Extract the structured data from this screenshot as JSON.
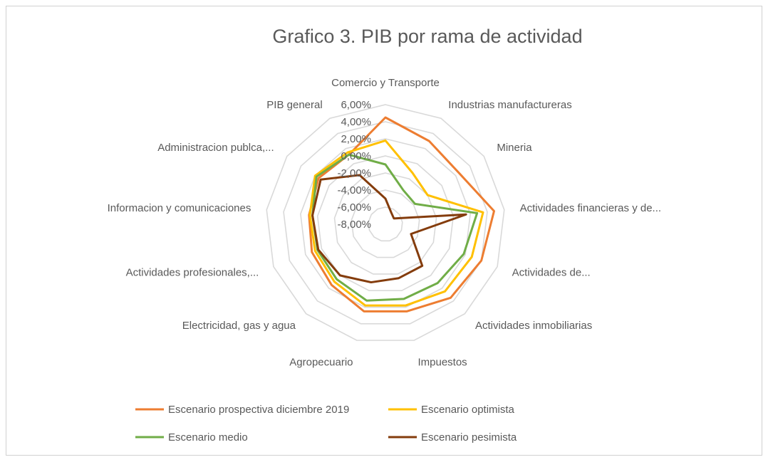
{
  "chart_data": {
    "type": "radar",
    "title": "Grafico 3. PIB por rama de actividad",
    "categories": [
      "Comercio y Transporte",
      "Industrias manufactureras",
      "Mineria",
      "Actividades financieras y de...",
      "Actividades de...",
      "Actividades inmobiliarias",
      "Impuestos",
      "Agropecuario",
      "Electricidad, gas y agua",
      "Actividades profesionales,...",
      "Informacion y comunicaciones",
      "Administracion publca,...",
      "PIB general"
    ],
    "axis_ticks": [
      "6,00%",
      "4,00%",
      "2,00%",
      "0,00%",
      "-2,00%",
      "-4,00%",
      "-6,00%",
      "-8,00%"
    ],
    "rlim": [
      -8,
      6
    ],
    "grid": true,
    "legend_position": "bottom",
    "series": [
      {
        "name": "Escenario prospectiva diciembre 2019",
        "color": "#ED7D31",
        "values": [
          4.5,
          3.0,
          2.5,
          4.8,
          4.0,
          3.5,
          2.5,
          2.5,
          1.5,
          1.2,
          1.0,
          1.5,
          1.2
        ]
      },
      {
        "name": "Escenario optimista",
        "color": "#FFC000",
        "values": [
          1.8,
          -1.2,
          -2.0,
          3.5,
          2.8,
          2.5,
          1.8,
          1.8,
          1.0,
          0.8,
          0.9,
          2.0,
          1.5
        ]
      },
      {
        "name": "Escenario medio",
        "color": "#70AD47",
        "values": [
          -1.0,
          -3.5,
          -3.8,
          2.8,
          1.8,
          1.2,
          1.0,
          1.2,
          0.6,
          0.5,
          0.6,
          1.8,
          1.2
        ]
      },
      {
        "name": "Escenario pesimista",
        "color": "#843C0C",
        "values": [
          -5.0,
          -6.5,
          -6.8,
          1.5,
          -4.8,
          -1.5,
          -1.5,
          -1.0,
          0.0,
          0.4,
          0.6,
          1.2,
          -1.5
        ]
      }
    ]
  }
}
